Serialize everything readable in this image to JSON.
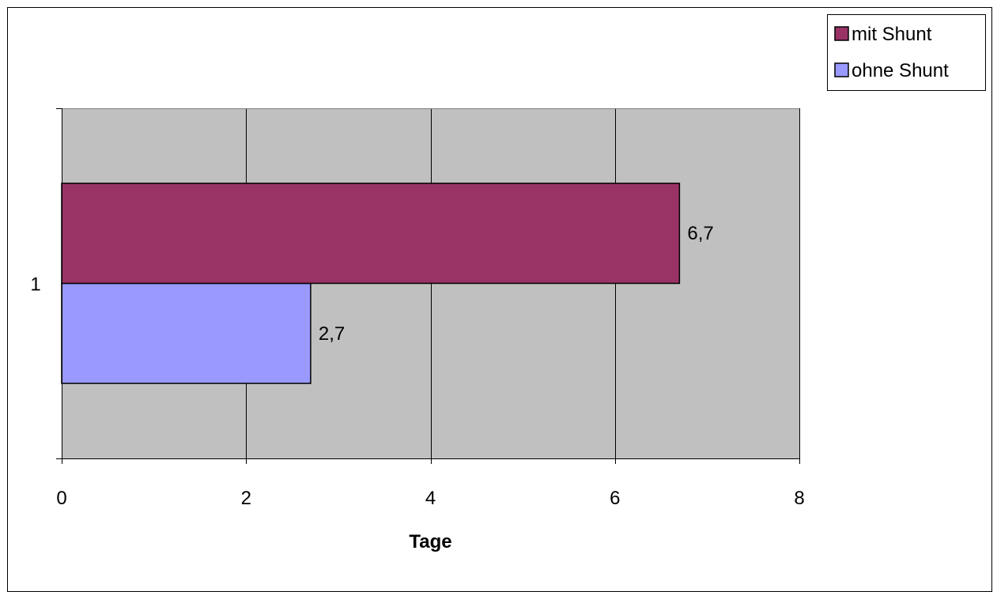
{
  "chart_data": {
    "type": "bar",
    "orientation": "horizontal",
    "categories": [
      "1"
    ],
    "series": [
      {
        "name": "ohne Shunt",
        "values": [
          2.7
        ],
        "label": "2,7",
        "color": "#9999FF"
      },
      {
        "name": "mit Shunt",
        "values": [
          6.7
        ],
        "label": "6,7",
        "color": "#993366"
      }
    ],
    "xlabel": "Tage",
    "xlim": [
      0,
      8
    ],
    "xticks": [
      0,
      2,
      4,
      6,
      8
    ],
    "xtick_labels": [
      "0",
      "2",
      "4",
      "6",
      "8"
    ],
    "grid": true,
    "plot_background": "#C0C0C0",
    "legend": {
      "position": "top-right",
      "items": [
        {
          "label": "mit Shunt",
          "color": "#993366"
        },
        {
          "label": "ohne Shunt",
          "color": "#9999FF"
        }
      ]
    }
  }
}
